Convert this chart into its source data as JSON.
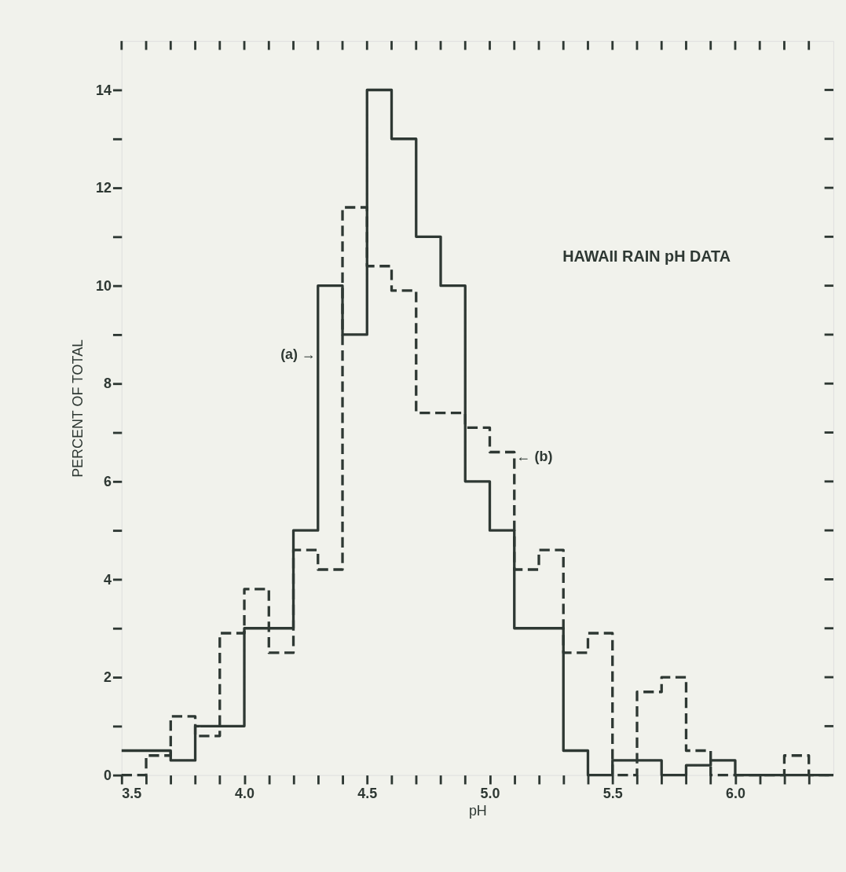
{
  "chart_data": {
    "type": "histogram",
    "title": "HAWAII RAIN pH DATA",
    "xlabel": "pH",
    "ylabel": "PERCENT OF TOTAL",
    "bins": [
      3.5,
      3.6,
      3.7,
      3.8,
      3.9,
      4.0,
      4.1,
      4.2,
      4.3,
      4.4,
      4.5,
      4.6,
      4.7,
      4.8,
      4.9,
      5.0,
      5.1,
      5.2,
      5.3,
      5.4,
      5.5,
      5.6,
      5.7,
      5.8,
      5.9,
      6.0,
      6.1,
      6.2,
      6.3,
      6.4
    ],
    "series": [
      {
        "color": "#2e3833",
        "line_style": "solid",
        "values": [
          0.5,
          0.5,
          0.3,
          1.0,
          1.0,
          3.0,
          3.0,
          5.0,
          10.0,
          9.0,
          14.0,
          13.0,
          11.0,
          10.0,
          6.0,
          5.0,
          3.0,
          3.0,
          0.5,
          0,
          0.3,
          0.3,
          0,
          0.2,
          0.3,
          0,
          0,
          0,
          0
        ]
      },
      {
        "color": "#2e3833",
        "line_style": "dashed",
        "values": [
          0,
          0.4,
          1.2,
          0.8,
          2.9,
          3.8,
          2.5,
          4.6,
          4.2,
          11.6,
          10.4,
          9.9,
          7.4,
          7.4,
          7.1,
          6.6,
          4.2,
          4.6,
          2.5,
          2.9,
          0,
          1.7,
          2.0,
          0.5,
          0,
          0,
          0,
          0.4,
          0
        ]
      }
    ],
    "annotations": [
      {
        "text": "(a) →",
        "x": 4.3,
        "y": 8.6
      },
      {
        "text": "← (b)",
        "x": 5.1,
        "y": 6.5
      }
    ],
    "xlim": [
      3.5,
      6.4
    ],
    "ylim": [
      0,
      15
    ],
    "xticks": [
      3.5,
      {
        "value": 3.6,
        "label": null
      },
      {
        "value": 3.7,
        "label": null
      },
      {
        "value": 3.8,
        "label": null
      },
      {
        "value": 3.9,
        "label": null
      },
      {
        "value": 4.0,
        "label": "4.0"
      },
      {
        "value": 4.1,
        "label": null
      },
      {
        "value": 4.2,
        "label": null
      },
      {
        "value": 4.3,
        "label": null
      },
      {
        "value": 4.4,
        "label": null
      },
      4.5,
      {
        "value": 4.6,
        "label": null
      },
      {
        "value": 4.7,
        "label": null
      },
      {
        "value": 4.8,
        "label": null
      },
      {
        "value": 4.9,
        "label": null
      },
      {
        "value": 5.0,
        "label": "5.0"
      },
      {
        "value": 5.1,
        "label": null
      },
      {
        "value": 5.2,
        "label": null
      },
      {
        "value": 5.3,
        "label": null
      },
      {
        "value": 5.4,
        "label": null
      },
      5.5,
      {
        "value": 5.6,
        "label": null
      },
      {
        "value": 5.7,
        "label": null
      },
      {
        "value": 5.8,
        "label": null
      },
      {
        "value": 5.9,
        "label": null
      },
      {
        "value": 6.0,
        "label": "6.0"
      },
      {
        "value": 6.1,
        "label": null
      },
      {
        "value": 6.2,
        "label": null
      },
      {
        "value": 6.3,
        "label": null
      }
    ],
    "yticks": [
      0,
      {
        "value": 1,
        "label": null
      },
      2,
      {
        "value": 3,
        "label": null
      },
      4,
      {
        "value": 5,
        "label": null
      },
      6,
      {
        "value": 7,
        "label": null
      },
      8,
      {
        "value": 9,
        "label": null
      },
      10,
      {
        "value": 11,
        "label": null
      },
      12,
      {
        "value": 13,
        "label": null
      },
      14
    ],
    "grid": false
  }
}
